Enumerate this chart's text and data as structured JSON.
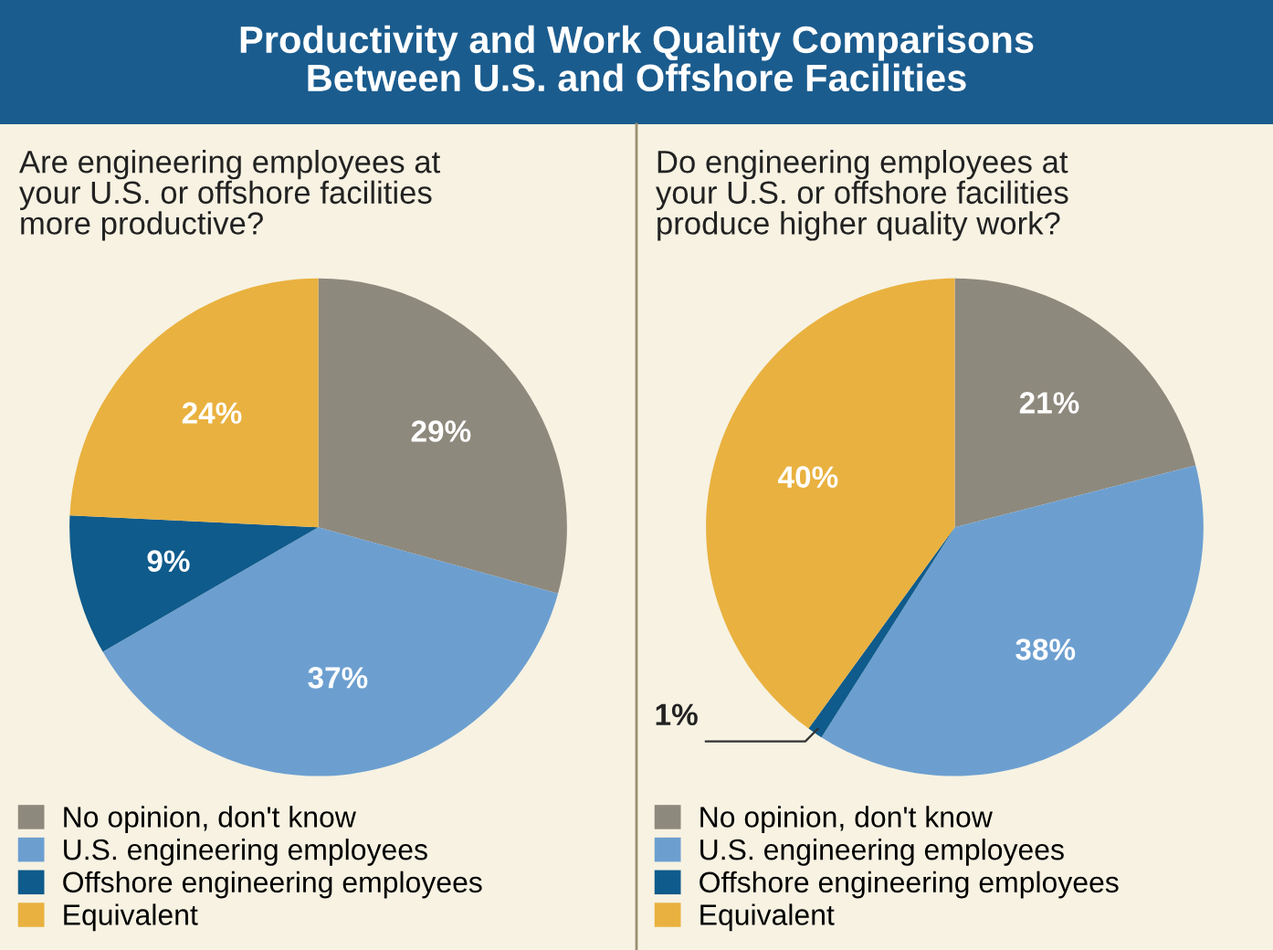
{
  "chart_data": [
    {
      "type": "pie",
      "title": "Productivity and Work Quality Comparisons\nBetween U.S. and Offshore Facilities",
      "subtitle": "Are engineering employees at\nyour U.S. or offshore facilities\nmore productive?",
      "categories": [
        "No opinion, don't know",
        "U.S. engineering employees",
        "Offshore engineering employees",
        "Equivalent"
      ],
      "values": [
        29,
        37,
        9,
        24
      ],
      "value_labels": [
        "29%",
        "37%",
        "9%",
        "24%"
      ],
      "colors": [
        "#8e897d",
        "#6c9fd0",
        "#0f5b8c",
        "#e9b13f"
      ],
      "legend": "bottom"
    },
    {
      "type": "pie",
      "subtitle": "Do engineering employees at\nyour U.S. or offshore facilities\nproduce higher quality work?",
      "categories": [
        "No opinion, don't know",
        "U.S. engineering employees",
        "Offshore engineering employees",
        "Equivalent"
      ],
      "values": [
        21,
        38,
        1,
        40
      ],
      "value_labels": [
        "21%",
        "38%",
        "1%",
        "40%"
      ],
      "colors": [
        "#8e897d",
        "#6c9fd0",
        "#0f5b8c",
        "#e9b13f"
      ],
      "legend": "bottom"
    }
  ]
}
